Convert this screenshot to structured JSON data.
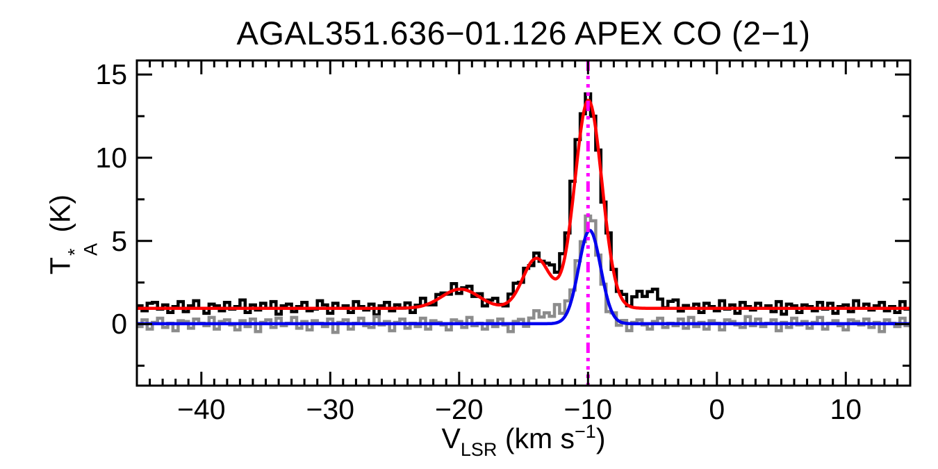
{
  "figure": {
    "background": "#FFFFFF",
    "frame_color": "#000000",
    "text_color": "#000000"
  },
  "chart_data": {
    "type": "line",
    "title": "AGAL351.636−01.126  APEX CO (2−1)",
    "xlabel": "V_LSR (km s^-1)",
    "ylabel": "T*_A (K)",
    "xlabel_parts": {
      "pre": "V",
      "sub": "LSR",
      "mid": " (km s",
      "sup": "−1",
      "post": ")"
    },
    "ylabel_parts": {
      "pre": "T",
      "sup": "*",
      "sub": "A",
      "post": " (K)"
    },
    "xlim": [
      -45,
      15
    ],
    "ylim": [
      -3.7,
      15.85
    ],
    "x_major_ticks": [
      -40,
      -30,
      -20,
      -10,
      0,
      10
    ],
    "x_tick_labels": [
      "−40",
      "−30",
      "−20",
      "−10",
      "0",
      "10"
    ],
    "x_minor_step": 1,
    "y_major_ticks": [
      0,
      5,
      10,
      15
    ],
    "y_tick_labels": [
      "0",
      "5",
      "10",
      "15"
    ],
    "y_minor_step": 2.5,
    "grid": false,
    "legend": false,
    "channel_width_kms": 0.4,
    "vline": {
      "x": -10.0,
      "color": "#FF00FF",
      "style": "dash-dot-dot-dot",
      "width": 5
    },
    "series": [
      {
        "name": "observed-co-spectrum",
        "style": "histogram",
        "color": "#000000",
        "line_width": 4.5,
        "baseline": 1.0,
        "gaussians": [
          {
            "c": -19.9,
            "a": 1.15,
            "s": 1.45
          },
          {
            "c": -14.0,
            "a": 3.0,
            "s": 1.1
          },
          {
            "c": -10.05,
            "a": 12.55,
            "s": 1.1
          },
          {
            "c": -5.3,
            "a": 0.9,
            "s": 1.0
          }
        ],
        "noise": [
          0.1,
          -0.2,
          0.25,
          0.3,
          -0.1,
          0.15,
          -0.3,
          0.05,
          0.35,
          -0.25,
          0.1,
          0.4,
          -0.05,
          -0.35,
          0.2,
          0.1,
          -0.2,
          0.3,
          -0.1,
          0.05,
          0.45,
          -0.3,
          0.15,
          -0.15,
          0.25,
          -0.05,
          0.35,
          -0.4,
          0.1,
          0.2,
          -0.25,
          0.05,
          0.3,
          -0.2,
          -0.1,
          0.4,
          0.15,
          -0.35,
          0.25,
          -0.05,
          0.1,
          -0.3,
          0.35,
          0.05,
          -0.15,
          0.2,
          -0.45,
          0.1,
          0.3,
          -0.2,
          0.15,
          -0.05,
          0.25,
          -0.35,
          0.05,
          0.4,
          -0.1,
          -0.25,
          0.2,
          0.1,
          -0.15,
          0.35,
          -0.3,
          0.05,
          0.25,
          -0.2,
          0.15,
          -0.4,
          0.1,
          0.3,
          -0.05,
          -0.25,
          0.2,
          0.4,
          -0.15,
          0.05,
          -0.3,
          0.25,
          -0.1,
          0.15,
          0.35,
          -0.2,
          0.05,
          -0.45,
          0.2,
          0.1,
          -0.3,
          0.3,
          -0.05,
          0.15,
          -0.25,
          0.4,
          0.05,
          -0.15,
          0.2,
          -0.35,
          0.1,
          0.25,
          -0.2,
          0.05,
          0.3,
          -0.1,
          -0.4,
          0.15,
          0.35,
          -0.25,
          0.1,
          -0.05,
          0.2,
          -0.3,
          0.25,
          0.05,
          -0.2,
          0.4,
          -0.1,
          0.15,
          -0.35,
          0.3,
          0.05,
          -0.15,
          0.25,
          -0.05,
          0.1,
          -0.25,
          0.35,
          -0.4,
          0.2,
          0.1,
          -0.3,
          0.15,
          0.05,
          -0.2,
          0.3,
          -0.1,
          0.25,
          -0.35,
          0.05,
          0.15,
          -0.25,
          0.4,
          -0.05,
          0.2,
          -0.15,
          0.1,
          0.3,
          -0.2,
          0.05,
          -0.3,
          0.35,
          -0.1
        ]
      },
      {
        "name": "offset-reference-spectrum",
        "style": "histogram",
        "color": "#8C8C8C",
        "line_width": 4.5,
        "baseline": 0.0,
        "gaussians": [
          {
            "c": -13.6,
            "a": 0.5,
            "s": 0.7
          },
          {
            "c": -11.9,
            "a": 0.75,
            "s": 0.8
          },
          {
            "c": -9.9,
            "a": 6.35,
            "s": 0.78
          }
        ],
        "noise": [
          -0.15,
          0.25,
          -0.3,
          0.1,
          0.35,
          -0.2,
          0.05,
          -0.4,
          0.2,
          0.15,
          -0.25,
          0.3,
          0.05,
          -0.1,
          0.4,
          -0.3,
          0.15,
          0.25,
          -0.05,
          -0.35,
          0.2,
          -0.15,
          0.3,
          -0.45,
          0.1,
          0.25,
          -0.2,
          0.35,
          -0.1,
          0.05,
          0.4,
          -0.25,
          0.15,
          -0.35,
          0.2,
          0.05,
          -0.15,
          0.3,
          -0.5,
          0.1,
          0.25,
          -0.3,
          0.05,
          0.35,
          -0.1,
          -0.2,
          0.45,
          -0.05,
          0.15,
          -0.4,
          0.1,
          0.3,
          -0.25,
          0.05,
          -0.15,
          0.35,
          -0.3,
          0.2,
          0.1,
          -0.05,
          -0.35,
          0.25,
          0.15,
          -0.2,
          0.4,
          -0.1,
          0.05,
          -0.3,
          0.2,
          -0.15,
          0.3,
          -0.05,
          -0.45,
          0.15,
          0.25,
          -0.25,
          0.1,
          0.35,
          -0.15,
          0.05,
          -0.2,
          0.4,
          -0.3,
          0.1,
          -0.05,
          0.25,
          -0.35,
          0.15,
          0.3,
          -0.1,
          0.05,
          -0.25,
          0.35,
          -0.15,
          0.2,
          -0.4,
          0.1,
          0.25,
          -0.05,
          -0.3,
          0.15,
          0.35,
          -0.2,
          0.05,
          -0.1,
          0.3,
          -0.25,
          0.4,
          -0.15,
          0.1,
          -0.3,
          0.2,
          0.05,
          -0.35,
          0.25,
          0.15,
          -0.05,
          -0.2,
          0.45,
          -0.1,
          0.3,
          -0.15,
          0.05,
          0.25,
          -0.4,
          0.1,
          -0.2,
          0.35,
          -0.05,
          0.15,
          -0.25,
          0.1,
          0.4,
          -0.3,
          0.05,
          0.2,
          -0.1,
          -0.35,
          0.25,
          0.15,
          -0.05,
          0.3,
          -0.2,
          0.1,
          -0.45,
          0.25,
          0.05,
          -0.15,
          0.35,
          -0.1
        ]
      },
      {
        "name": "gaussian-fit-observed",
        "style": "curve",
        "color": "#FF0000",
        "line_width": 4.5,
        "baseline": 0.95,
        "gaussians": [
          {
            "c": -19.9,
            "a": 1.15,
            "s": 1.45
          },
          {
            "c": -14.0,
            "a": 3.0,
            "s": 1.05
          },
          {
            "c": -9.97,
            "a": 12.5,
            "s": 1.05
          }
        ],
        "noise": []
      },
      {
        "name": "gaussian-fit-reference",
        "style": "curve",
        "color": "#0000EE",
        "line_width": 4.5,
        "baseline": 0.02,
        "gaussians": [
          {
            "c": -9.87,
            "a": 5.62,
            "s": 0.85
          }
        ],
        "noise": []
      }
    ]
  }
}
